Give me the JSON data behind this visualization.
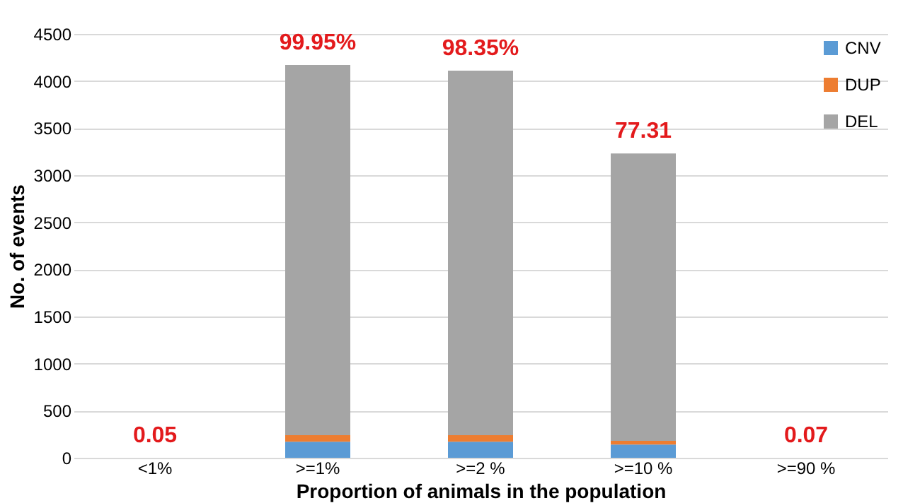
{
  "chart_data": {
    "type": "bar",
    "stacked": true,
    "xlabel": "Proportion of animals in the population",
    "ylabel": "No. of events",
    "categories": [
      "<1%",
      ">=1%",
      ">=2 %",
      ">=10 %",
      ">=90 %"
    ],
    "series": [
      {
        "name": "CNV",
        "color": "#5b9bd5",
        "values": [
          0,
          170,
          170,
          140,
          0
        ]
      },
      {
        "name": "DUP",
        "color": "#ed7d31",
        "values": [
          0,
          70,
          70,
          40,
          0
        ]
      },
      {
        "name": "DEL",
        "color": "#a5a5a5",
        "values": [
          0,
          3930,
          3870,
          3050,
          0
        ]
      }
    ],
    "annotations": [
      {
        "text": "0.05",
        "x": "<1%",
        "y": 0
      },
      {
        "text": "99.95%",
        "x": ">=1%",
        "y": 4170
      },
      {
        "text": "98.35%",
        "x": ">=2 %",
        "y": 4110
      },
      {
        "text": "77.31",
        "x": ">=10 %",
        "y": 3230
      },
      {
        "text": "0.07",
        "x": ">=90 %",
        "y": 0
      }
    ],
    "ylim": [
      0,
      4500
    ],
    "yticks": [
      0,
      500,
      1000,
      1500,
      2000,
      2500,
      3000,
      3500,
      4000,
      4500
    ],
    "grid": "y",
    "legend": "top right"
  }
}
